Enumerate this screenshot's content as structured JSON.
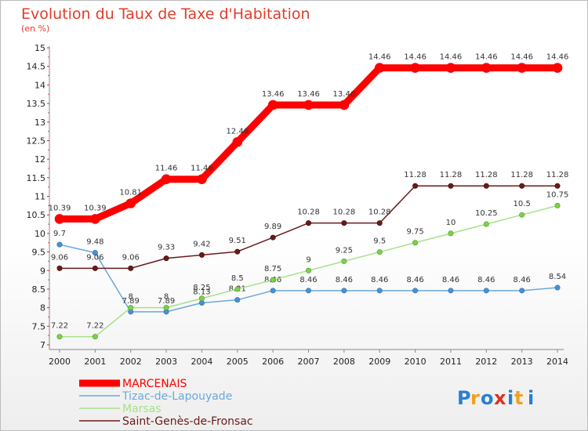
{
  "title": "Evolution du Taux de Taxe d'Habitation",
  "subtitle": "(en %)",
  "logo": [
    "P",
    "r",
    "o",
    "x",
    "i",
    "t",
    "i"
  ],
  "colors": {
    "MARCENAIS": "#ff0000",
    "Tizac-de-Lapouyade": "#6aa8dc",
    "Marsas": "#a8e08a",
    "Saint-Genès-de-Fronsac": "#6b1a1a",
    "logo": [
      "#2a7fd0",
      "#f0a020",
      "#2a7fd0",
      "#e03020",
      "#2a7fd0",
      "#f0a020",
      "#2a7fd0"
    ]
  },
  "chart_data": {
    "type": "line",
    "x": [
      "2000",
      "2001",
      "2002",
      "2003",
      "2004",
      "2005",
      "2006",
      "2007",
      "2008",
      "2009",
      "2010",
      "2011",
      "2012",
      "2013",
      "2014"
    ],
    "ylim": [
      7,
      15
    ],
    "yticks": [
      "7",
      "7.5",
      "8",
      "8.5",
      "9",
      "9.5",
      "10",
      "10.5",
      "11",
      "11.5",
      "12",
      "12.5",
      "13",
      "13.5",
      "14",
      "14.5",
      "15"
    ],
    "grid": false,
    "legend": "bottom-left",
    "series": [
      {
        "name": "MARCENAIS",
        "values": [
          10.39,
          10.39,
          10.81,
          11.46,
          11.46,
          12.46,
          13.46,
          13.46,
          13.46,
          14.46,
          14.46,
          14.46,
          14.46,
          14.46,
          14.46
        ],
        "labels": [
          "10.39",
          "10.39",
          "10.81",
          "11.46",
          "11.46",
          "12.46",
          "13.46",
          "13.46",
          "13.46",
          "14.46",
          "14.46",
          "14.46",
          "14.46",
          "14.46",
          "14.46"
        ]
      },
      {
        "name": "Tizac-de-Lapouyade",
        "values": [
          9.7,
          9.48,
          7.89,
          7.89,
          8.13,
          8.21,
          8.46,
          8.46,
          8.46,
          8.46,
          8.46,
          8.46,
          8.46,
          8.46,
          8.54
        ],
        "labels": [
          "9.7",
          "9.48",
          "7.89",
          "7.89",
          "8.13",
          "8.21",
          "8.46",
          "8.46",
          "8.46",
          "8.46",
          "8.46",
          "8.46",
          "8.46",
          "8.46",
          "8.54"
        ]
      },
      {
        "name": "Marsas",
        "values": [
          7.22,
          7.22,
          8,
          8,
          8.25,
          8.5,
          8.75,
          9,
          9.25,
          9.5,
          9.75,
          10,
          10.25,
          10.5,
          10.75
        ],
        "labels": [
          "7.22",
          "7.22",
          "8",
          "8",
          "8.25",
          "8.5",
          "8.75",
          "9",
          "9.25",
          "9.5",
          "9.75",
          "10",
          "10.25",
          "10.5",
          "10.75"
        ]
      },
      {
        "name": "Saint-Genès-de-Fronsac",
        "values": [
          9.06,
          9.06,
          9.06,
          9.33,
          9.42,
          9.51,
          9.89,
          10.28,
          10.28,
          10.28,
          11.28,
          11.28,
          11.28,
          11.28,
          11.28
        ],
        "labels": [
          "9.06",
          "9.06",
          "9.06",
          "9.33",
          "9.42",
          "9.51",
          "9.89",
          "10.28",
          "10.28",
          "10.28",
          "11.28",
          "11.28",
          "11.28",
          "11.28",
          "11.28"
        ]
      }
    ]
  }
}
